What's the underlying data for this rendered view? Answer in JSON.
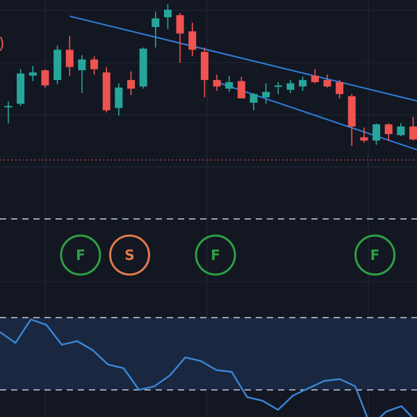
{
  "colors": {
    "background": "#131722",
    "grid": "#232838",
    "up": "#26a69a",
    "down": "#ef5350",
    "channel": "#2e7fd8",
    "rsi": "#3a86d8",
    "rsi_band": "#1b2a44",
    "dashed": "#9aa3b2",
    "dotted": "#ef5350",
    "badge_f": "#2ea043",
    "badge_s": "#e07b4a"
  },
  "top_left_glyph": ")",
  "chart_data": [
    {
      "type": "candlestick",
      "ylim": [
        88,
        106
      ],
      "candles": [
        {
          "o": 96.2,
          "h": 96.6,
          "l": 94.6,
          "c": 96.2
        },
        {
          "o": 96.4,
          "h": 99.6,
          "l": 96.2,
          "c": 99.2
        },
        {
          "o": 99.0,
          "h": 99.9,
          "l": 98.5,
          "c": 99.3
        },
        {
          "o": 99.5,
          "h": 99.6,
          "l": 97.9,
          "c": 98.1
        },
        {
          "o": 98.6,
          "h": 101.8,
          "l": 98.2,
          "c": 101.4
        },
        {
          "o": 101.4,
          "h": 102.7,
          "l": 99.0,
          "c": 99.8
        },
        {
          "o": 99.5,
          "h": 100.9,
          "l": 97.4,
          "c": 100.5
        },
        {
          "o": 100.5,
          "h": 100.8,
          "l": 99.1,
          "c": 99.6
        },
        {
          "o": 99.3,
          "h": 99.8,
          "l": 95.6,
          "c": 95.8
        },
        {
          "o": 96.0,
          "h": 98.3,
          "l": 95.3,
          "c": 97.9
        },
        {
          "o": 98.6,
          "h": 99.4,
          "l": 97.2,
          "c": 97.8
        },
        {
          "o": 98.0,
          "h": 101.6,
          "l": 97.8,
          "c": 101.5
        },
        {
          "o": 103.5,
          "h": 104.9,
          "l": 101.6,
          "c": 104.3
        },
        {
          "o": 104.4,
          "h": 105.6,
          "l": 103.3,
          "c": 105.1
        },
        {
          "o": 104.6,
          "h": 104.8,
          "l": 100.2,
          "c": 102.9
        },
        {
          "o": 103.1,
          "h": 103.9,
          "l": 100.8,
          "c": 101.4
        },
        {
          "o": 101.2,
          "h": 101.6,
          "l": 97.0,
          "c": 98.6
        },
        {
          "o": 98.6,
          "h": 99.1,
          "l": 97.6,
          "c": 98.0
        },
        {
          "o": 97.8,
          "h": 99.0,
          "l": 97.5,
          "c": 98.4
        },
        {
          "o": 98.5,
          "h": 98.9,
          "l": 96.9,
          "c": 96.9
        },
        {
          "o": 96.5,
          "h": 97.4,
          "l": 95.8,
          "c": 97.3
        },
        {
          "o": 97.0,
          "h": 98.3,
          "l": 96.4,
          "c": 97.5
        },
        {
          "o": 98.0,
          "h": 98.4,
          "l": 97.3,
          "c": 98.1
        },
        {
          "o": 97.7,
          "h": 98.6,
          "l": 97.4,
          "c": 98.3
        },
        {
          "o": 98.0,
          "h": 98.9,
          "l": 97.6,
          "c": 98.6
        },
        {
          "o": 99.0,
          "h": 99.6,
          "l": 98.3,
          "c": 98.4
        },
        {
          "o": 98.6,
          "h": 99.1,
          "l": 97.9,
          "c": 98.0
        },
        {
          "o": 98.4,
          "h": 98.6,
          "l": 96.9,
          "c": 97.3
        },
        {
          "o": 97.1,
          "h": 97.3,
          "l": 92.5,
          "c": 94.3
        },
        {
          "o": 93.3,
          "h": 94.2,
          "l": 92.8,
          "c": 93.0
        },
        {
          "o": 93.0,
          "h": 94.6,
          "l": 92.6,
          "c": 94.5
        },
        {
          "o": 94.5,
          "h": 94.6,
          "l": 93.0,
          "c": 93.6
        },
        {
          "o": 93.5,
          "h": 94.6,
          "l": 93.4,
          "c": 94.3
        },
        {
          "o": 94.3,
          "h": 95.2,
          "l": 93.0,
          "c": 93.1
        }
      ],
      "channel_lines": [
        {
          "from": {
            "i": 5.0,
            "v": 104.5
          },
          "to": {
            "i": 35.0,
            "v": 96.2
          }
        },
        {
          "from": {
            "i": 17.0,
            "v": 98.4
          },
          "to": {
            "i": 35.0,
            "v": 91.5
          }
        }
      ],
      "dotted_level": 91.2
    },
    {
      "type": "event-markers",
      "markers": [
        {
          "label": "F",
          "i": 6,
          "kind": "F"
        },
        {
          "label": "S",
          "i": 10,
          "kind": "S"
        },
        {
          "label": "F",
          "i": 17,
          "kind": "F"
        },
        {
          "label": "F",
          "i": 30,
          "kind": "F"
        }
      ]
    },
    {
      "type": "line",
      "ylim": [
        15,
        90
      ],
      "band": [
        30,
        70
      ],
      "values": [
        62,
        56,
        69,
        66,
        55,
        57,
        52,
        44,
        42,
        30,
        32,
        38,
        48,
        46,
        41,
        40,
        26,
        24,
        19,
        27,
        31,
        35,
        36,
        32,
        10,
        18,
        21,
        12
      ]
    }
  ]
}
